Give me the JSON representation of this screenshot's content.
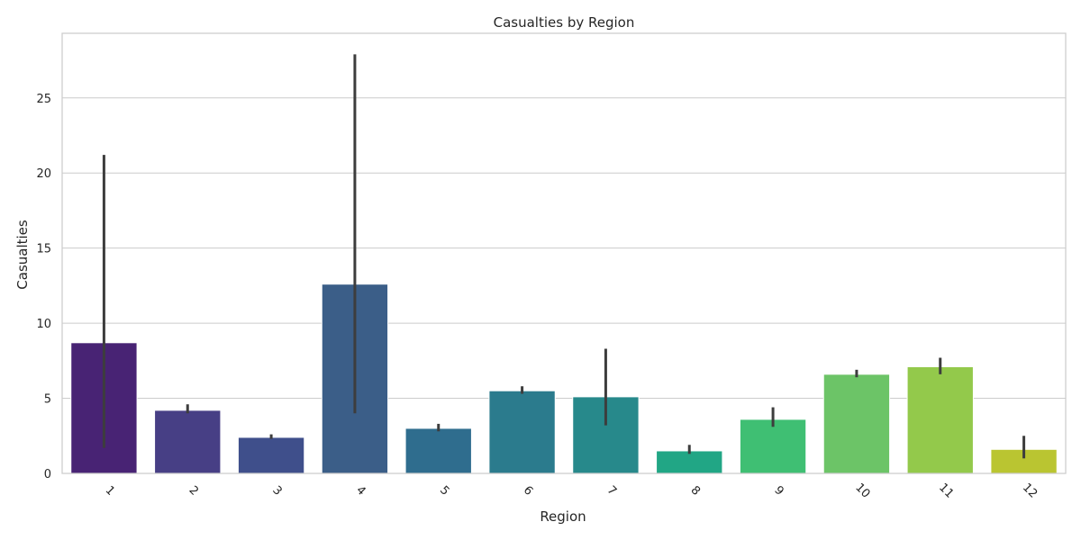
{
  "chart_data": {
    "type": "bar",
    "title": "Casualties by Region",
    "xlabel": "Region",
    "ylabel": "Casualties",
    "categories": [
      "1",
      "2",
      "3",
      "4",
      "5",
      "6",
      "7",
      "8",
      "9",
      "10",
      "11",
      "12"
    ],
    "values": [
      8.7,
      4.2,
      2.4,
      12.6,
      3.0,
      5.5,
      5.1,
      1.5,
      3.6,
      6.6,
      7.1,
      1.6
    ],
    "error_low": [
      1.7,
      4.0,
      2.3,
      4.0,
      2.8,
      5.3,
      3.2,
      1.3,
      3.1,
      6.4,
      6.6,
      1.0
    ],
    "error_high": [
      21.2,
      4.6,
      2.6,
      27.9,
      3.3,
      5.8,
      8.3,
      1.9,
      4.4,
      6.9,
      7.7,
      2.5
    ],
    "colors": [
      "#482374",
      "#473f85",
      "#3f4f8b",
      "#3b5e88",
      "#2f6d8e",
      "#2b7b8d",
      "#27898b",
      "#21a685",
      "#3fbf73",
      "#6cc467",
      "#93c94b",
      "#bac531"
    ],
    "ylim": [
      0,
      29.3
    ],
    "yticks": [
      0,
      5,
      10,
      15,
      20,
      25
    ],
    "grid": "y",
    "legend": "none"
  }
}
